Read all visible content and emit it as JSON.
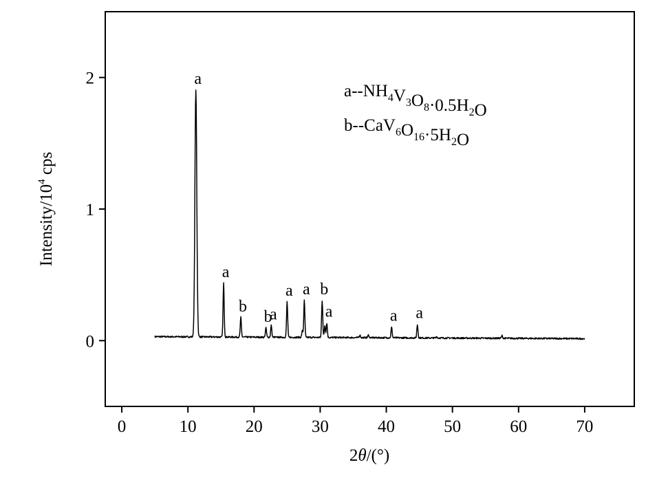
{
  "chart_data": {
    "type": "line",
    "xlabel_main": "2",
    "xlabel_theta": "θ",
    "xlabel_unit": "/(°)",
    "ylabel_main": "Intensity/10",
    "ylabel_exp": "4",
    "ylabel_unit": " cps",
    "xlim": [
      -2.5,
      77.5
    ],
    "ylim": [
      -0.5,
      2.5
    ],
    "xticks": [
      0,
      10,
      20,
      30,
      40,
      50,
      60,
      70
    ],
    "yticks": [
      0,
      1,
      2
    ],
    "grid": false,
    "legend_placement": "top-right",
    "legend": {
      "a": {
        "prefix": "a--NH",
        "parts": [
          {
            "t": "NH",
            "sub": "4"
          },
          {
            "t": "V",
            "sub": "3"
          },
          {
            "t": "O",
            "sub": "8"
          },
          {
            "t": "·0.5H",
            "sub": "2"
          },
          {
            "t": "O",
            "sub": ""
          }
        ]
      },
      "b": {
        "parts": [
          {
            "t": "CaV",
            "sub": "6"
          },
          {
            "t": "O",
            "sub": "16"
          },
          {
            "t": "·5H",
            "sub": "2"
          },
          {
            "t": "O",
            "sub": ""
          }
        ]
      }
    },
    "legend_lines": {
      "a_head": "a--",
      "b_head": "b--"
    },
    "baseline": 0.03,
    "x_start": 5,
    "x_end": 70,
    "peaks": [
      {
        "x": 11.2,
        "y": 1.91,
        "label": "a"
      },
      {
        "x": 15.4,
        "y": 0.44,
        "label": "a"
      },
      {
        "x": 18.0,
        "y": 0.18,
        "label": "b"
      },
      {
        "x": 21.8,
        "y": 0.1,
        "label": "b"
      },
      {
        "x": 22.6,
        "y": 0.12,
        "label": "a"
      },
      {
        "x": 25.0,
        "y": 0.3,
        "label": "a"
      },
      {
        "x": 27.6,
        "y": 0.31,
        "label": "a"
      },
      {
        "x": 30.3,
        "y": 0.31,
        "label": "b"
      },
      {
        "x": 31.0,
        "y": 0.14,
        "label": "a"
      },
      {
        "x": 40.8,
        "y": 0.11,
        "label": "a"
      },
      {
        "x": 44.7,
        "y": 0.13,
        "label": "a"
      },
      {
        "x": 27.3,
        "y": 0.08,
        "label": ""
      },
      {
        "x": 30.7,
        "y": 0.12,
        "label": ""
      },
      {
        "x": 36.0,
        "y": 0.05,
        "label": ""
      },
      {
        "x": 37.3,
        "y": 0.05,
        "label": ""
      },
      {
        "x": 47.6,
        "y": 0.04,
        "label": ""
      },
      {
        "x": 49.5,
        "y": 0.03,
        "label": ""
      },
      {
        "x": 57.5,
        "y": 0.05,
        "label": ""
      }
    ]
  }
}
